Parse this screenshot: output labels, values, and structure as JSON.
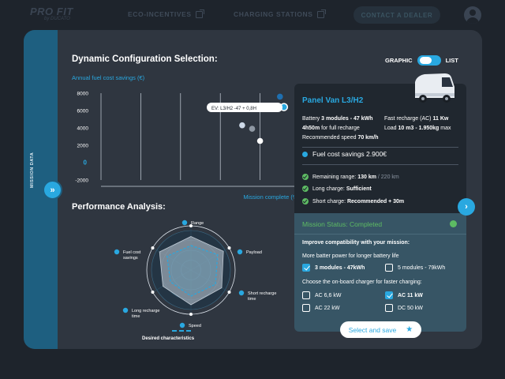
{
  "nav": {
    "logo_main": "PRO FIT",
    "logo_sub": "by DUCATO",
    "eco_incentives": "ECO-INCENTIVES",
    "charging_stations": "CHARGING STATIONS",
    "contact_dealer": "CONTACT A DEALER"
  },
  "sidebar": {
    "label": "MISSION DATA"
  },
  "config": {
    "title": "Dynamic Configuration Selection:",
    "toggle_left": "GRAPHIC",
    "toggle_right": "LIST"
  },
  "scatter": {
    "caption": "Annual fuel cost savings (€)",
    "xlabel": "Mission complete (%)",
    "yticks": [
      "8000",
      "6000",
      "4000",
      "2000",
      "0",
      "-2000"
    ],
    "tooltip": "EV: L3/H2 -47 + 0,8H",
    "colors": {
      "accent": "#29a8e0",
      "light": "#cdd9e8",
      "grey": "#8f98a3",
      "navy": "#1e6fb0"
    }
  },
  "chart_data": [
    {
      "type": "scatter",
      "ylabel": "Annual fuel cost savings (€)",
      "xlabel": "Mission complete (%)",
      "ylim": [
        -2000,
        8000
      ],
      "grid": "vertical",
      "series": [
        {
          "name": "EV: L3/H2 -47 + 0,8H",
          "points": [
            [
              92,
              6400
            ]
          ]
        },
        {
          "points": [
            [
              90,
              7600
            ],
            [
              71,
              4300
            ],
            [
              76,
              3900
            ],
            [
              80,
              2500
            ]
          ]
        }
      ]
    }
  ],
  "performance": {
    "title": "Performance Analysis:",
    "axes": [
      "Range",
      "Payload",
      "Short recharge time",
      "Speed",
      "Long recharge time",
      "Fuel cost savings"
    ],
    "legend": "Desired characteristics"
  },
  "panel": {
    "title": "Panel Van L3/H2",
    "battery_prefix": "Battery ",
    "battery_value": "3 modules - 47 kWh",
    "fast_recharge_prefix": "Fast recharge (AC) ",
    "fast_recharge_value": "11 Kw",
    "full_recharge_value": "4h50m",
    "full_recharge_suffix": " for full recharge",
    "load_prefix": "Load ",
    "load_value": "10 m3 - 1.950kg",
    "load_suffix": " max",
    "speed_prefix": "Recommended speed ",
    "speed_value": "70 km/h",
    "fuel_savings": "Fuel cost savings 2.900€",
    "range_prefix": "Remaining range: ",
    "range_value": "130 km",
    "range_total": " / 220 km",
    "long_charge_prefix": "Long charge: ",
    "long_charge_value": "Sufficient",
    "short_charge_prefix": "Short charge: ",
    "short_charge_value": "Recommended + 30m"
  },
  "status": {
    "head": "Mission Status: Completed",
    "improve": "Improve compatibility with your mission:",
    "more_power": "More batter power for longer battery life",
    "opt_3_modules": "3 modules - 47kWh",
    "opt_5_modules": "5 modules - 79kWh",
    "charger_title": "Choose the on-board charger for faster charging:",
    "ac66": "AC 6,6 kW",
    "ac11": "AC 11 kW",
    "ac22": "AC 22 kW",
    "dc50": "DC 50 kW",
    "save": "Select and save"
  }
}
